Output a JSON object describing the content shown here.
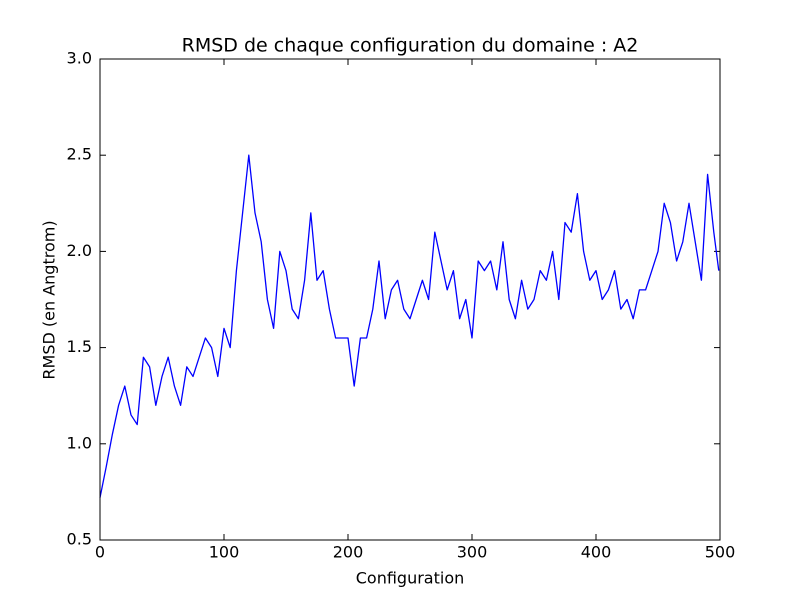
{
  "chart_data": {
    "type": "line",
    "title": "RMSD de chaque configuration du domaine : A2",
    "xlabel": "Configuration",
    "ylabel": "RMSD (en Angtrom)",
    "xlim": [
      0,
      500
    ],
    "ylim": [
      0.5,
      3.0
    ],
    "xticks": [
      0,
      100,
      200,
      300,
      400,
      500
    ],
    "yticks": [
      0.5,
      {
        "value": 1.0,
        "label": "1.0"
      },
      1.5,
      {
        "value": 2.0,
        "label": "2.0"
      },
      2.5,
      {
        "value": 3.0,
        "label": "3.0"
      }
    ],
    "x": [
      0,
      5,
      10,
      15,
      20,
      25,
      30,
      35,
      40,
      45,
      50,
      55,
      60,
      65,
      70,
      75,
      80,
      85,
      90,
      95,
      100,
      105,
      110,
      115,
      120,
      125,
      130,
      135,
      140,
      145,
      150,
      155,
      160,
      165,
      170,
      175,
      180,
      185,
      190,
      195,
      200,
      205,
      210,
      215,
      220,
      225,
      230,
      235,
      240,
      245,
      250,
      255,
      260,
      265,
      270,
      275,
      280,
      285,
      290,
      295,
      300,
      305,
      310,
      315,
      320,
      325,
      330,
      335,
      340,
      345,
      350,
      355,
      360,
      365,
      370,
      375,
      380,
      385,
      390,
      395,
      400,
      405,
      410,
      415,
      420,
      425,
      430,
      435,
      440,
      445,
      450,
      455,
      460,
      465,
      470,
      475,
      480,
      485,
      490,
      495,
      499
    ],
    "series": [
      {
        "name": "RMSD",
        "color": "#0000ff",
        "values": [
          0.72,
          0.88,
          1.05,
          1.2,
          1.3,
          1.15,
          1.1,
          1.45,
          1.4,
          1.2,
          1.35,
          1.45,
          1.3,
          1.2,
          1.4,
          1.35,
          1.45,
          1.55,
          1.5,
          1.35,
          1.6,
          1.5,
          1.9,
          2.2,
          2.5,
          2.2,
          2.05,
          1.75,
          1.6,
          2.0,
          1.9,
          1.7,
          1.65,
          1.85,
          2.2,
          1.85,
          1.9,
          1.7,
          1.55,
          1.55,
          1.55,
          1.3,
          1.55,
          1.55,
          1.7,
          1.95,
          1.65,
          1.8,
          1.85,
          1.7,
          1.65,
          1.75,
          1.85,
          1.75,
          2.1,
          1.95,
          1.8,
          1.9,
          1.65,
          1.75,
          1.55,
          1.95,
          1.9,
          1.95,
          1.8,
          2.05,
          1.75,
          1.65,
          1.85,
          1.7,
          1.75,
          1.9,
          1.85,
          2.0,
          1.75,
          2.15,
          2.1,
          2.3,
          2.0,
          1.85,
          1.9,
          1.75,
          1.8,
          1.9,
          1.7,
          1.75,
          1.65,
          1.8,
          1.8,
          1.9,
          2.0,
          2.25,
          2.15,
          1.95,
          2.05,
          2.25,
          2.05,
          1.85,
          2.4,
          2.1,
          1.9
        ]
      }
    ]
  }
}
